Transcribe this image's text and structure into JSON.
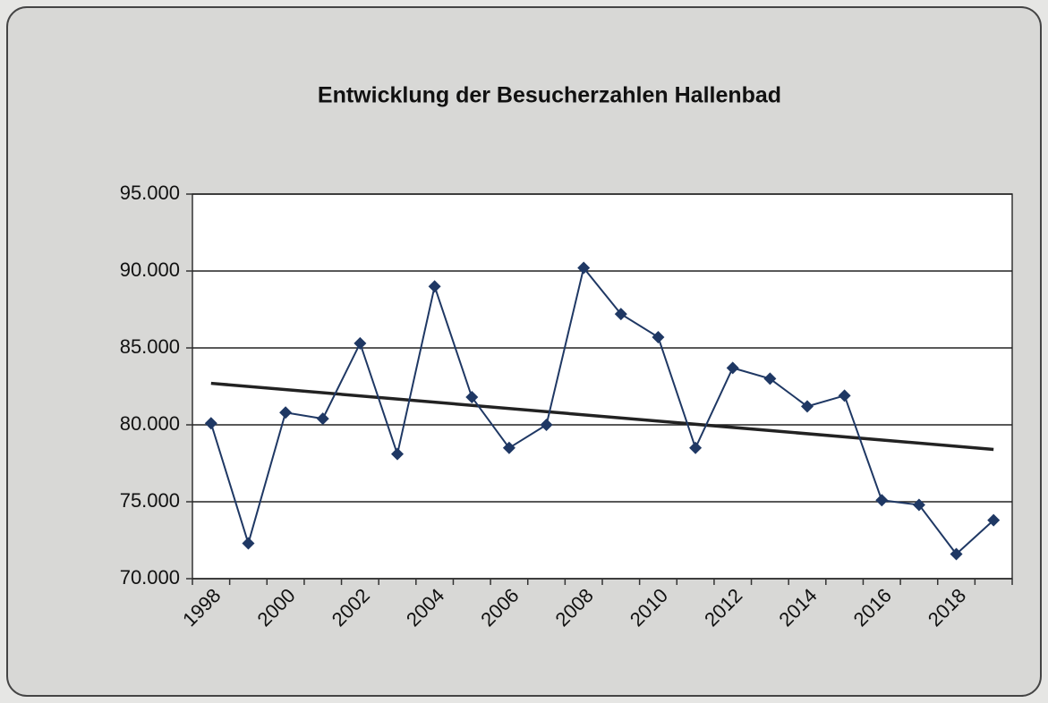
{
  "chart_data": {
    "type": "line",
    "title": "Entwicklung der Besucherzahlen Hallenbad",
    "categories": [
      "1998",
      null,
      "2000",
      null,
      "2002",
      null,
      "2004",
      null,
      "2006",
      null,
      "2008",
      null,
      "2010",
      null,
      "2012",
      null,
      "2014",
      null,
      "2016",
      null,
      "2018",
      null
    ],
    "series": [
      {
        "name": null,
        "color": "#1f3864",
        "values": [
          80100,
          72300,
          80800,
          80400,
          85300,
          78100,
          89000,
          81800,
          78500,
          80000,
          90200,
          87200,
          85700,
          78500,
          83700,
          83000,
          81200,
          81900,
          75100,
          74800,
          71600,
          73800
        ]
      }
    ],
    "trendline": {
      "values": [
        82700,
        78400
      ],
      "color": "#222222"
    },
    "ylim": [
      70000,
      95000
    ],
    "yticks": [
      {
        "value": 70000,
        "label": "70.000"
      },
      {
        "value": 75000,
        "label": "75.000"
      },
      {
        "value": 80000,
        "label": "80.000"
      },
      {
        "value": 85000,
        "label": "85.000"
      },
      {
        "value": 90000,
        "label": "90.000"
      },
      {
        "value": 95000,
        "label": "95.000"
      }
    ],
    "grid": true
  }
}
